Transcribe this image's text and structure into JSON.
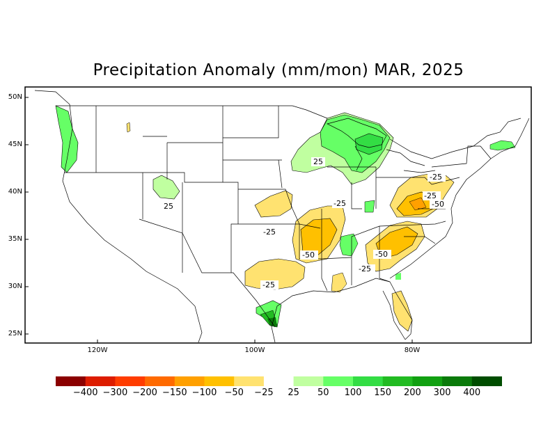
{
  "title": "Precipitation Anomaly (mm/mon) MAR, 2025",
  "axes": {
    "y_ticks": [
      "50N",
      "45N",
      "40N",
      "35N",
      "30N",
      "25N"
    ],
    "x_ticks": [
      "120W",
      "100W",
      "80W"
    ]
  },
  "contour_labels": [
    "25",
    "25",
    "-25",
    "-25",
    "-50",
    "-25",
    "-25",
    "-50",
    "-25",
    "-50",
    "-25"
  ],
  "legend": {
    "colors": [
      "#8b0000",
      "#dd1c00",
      "#ff3c00",
      "#ff6a00",
      "#ffa000",
      "#ffc000",
      "#ffe270",
      "#ffffff",
      "#c0ffa0",
      "#66ff66",
      "#33dd44",
      "#22bb22",
      "#11a011",
      "#0a7a0a",
      "#004d00"
    ],
    "labels": [
      "-400",
      "-300",
      "-200",
      "-150",
      "-100",
      "-50",
      "-25",
      "25",
      "50",
      "100",
      "150",
      "200",
      "300",
      "400"
    ]
  }
}
